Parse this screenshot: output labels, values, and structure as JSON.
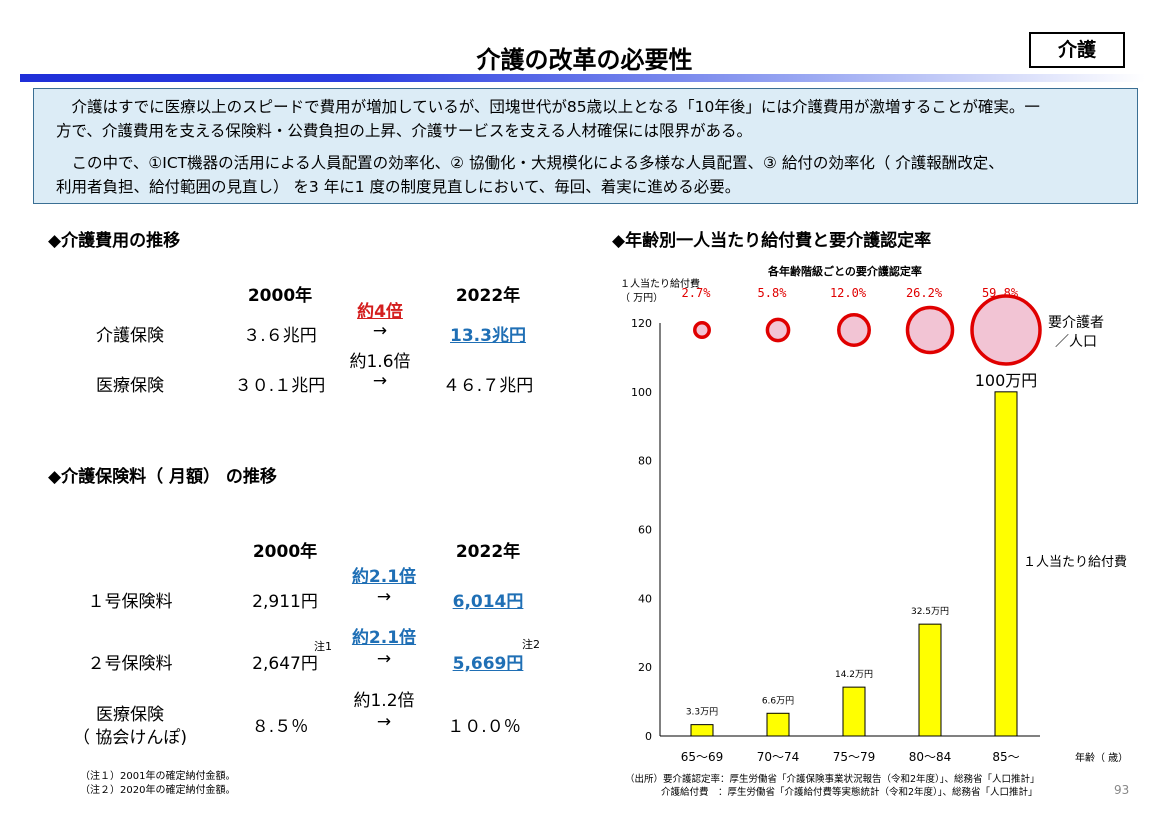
{
  "header": {
    "title": "介護の改革の必要性",
    "tag": "介護"
  },
  "summary": {
    "bullet_symbol": "",
    "p1_line1": "　介護はすでに医療以上のスピードで費用が増加しているが、団塊世代が85歳以上となる「10年後」には介護費用が激増することが確実。一",
    "p1_line2": "方で、介護費用を支える保険料・公費負担の上昇、介護サービスを支える人材確保には限界がある。",
    "p2_line1": "　この中で、①ICT機器の活用による人員配置の効率化、② 協働化・大規模化による多様な人員配置、③ 給付の効率化（ 介護報酬改定、",
    "p2_line2": "利用者負担、給付範囲の見直し） を3 年に1 度の制度見直しにおいて、毎回、着実に進める必要。"
  },
  "cost": {
    "heading": "◆介護費用の推移",
    "year_from": "2000年",
    "year_to": "2022年",
    "rows": [
      {
        "label": "介護保険",
        "from": "３.６兆円",
        "ratio": "約4倍",
        "arrow": "→",
        "to": "13.3兆円"
      },
      {
        "label": "医療保険",
        "from": "３０.１兆円",
        "ratio": "約1.6倍",
        "arrow": "→",
        "to": "４６.７兆円"
      }
    ]
  },
  "premium": {
    "heading": "◆介護保険料（ 月額） の推移",
    "year_from": "2000年",
    "year_to": "2022年",
    "rows": [
      {
        "label": "１号保険料",
        "from": "2,911円",
        "ratio": "約2.1倍",
        "arrow": "→",
        "to": "6,014円"
      },
      {
        "label": "２号保険料",
        "from": "2,647円",
        "from_note": "注1",
        "ratio": "約2.1倍",
        "arrow": "→",
        "to": "5,669円",
        "to_note": "注2"
      },
      {
        "label_line1": "医療保険",
        "label_line2": "（ 協会けんぽ)",
        "from": "８.５％",
        "ratio": "約1.2倍",
        "arrow": "→",
        "to": "１０.０％"
      }
    ],
    "notes": [
      "（注１）2001年の確定納付金額。",
      "（注２）2020年の確定納付金額。"
    ]
  },
  "chart_heading": "◆年齢別一人当たり給付費と要介護認定率",
  "chart_data": {
    "type": "bar",
    "subtitle": "各年齢階級ごとの要介護認定率",
    "ylabel_line1": "１人当たり給付費",
    "ylabel_line2": "（ 万円）",
    "xlabel": "年齢（ 歳）",
    "categories": [
      "65～69",
      "70～74",
      "75～79",
      "80～84",
      "85～"
    ],
    "values": [
      3.3,
      6.6,
      14.2,
      32.5,
      100
    ],
    "value_labels": [
      "3.3万円",
      "6.6万円",
      "14.2万円",
      "32.5万円",
      "100万円"
    ],
    "ylim": [
      0,
      120
    ],
    "yticks": [
      0,
      20,
      40,
      60,
      80,
      100,
      120
    ],
    "series_label": "１人当たり給付費",
    "rates": [
      2.7,
      5.8,
      12.0,
      26.2,
      59.8
    ],
    "rate_labels": [
      "2.7%",
      "5.8%",
      "12.0%",
      "26.2%",
      "59.8%"
    ],
    "rate_legend_line1": "要介護者",
    "rate_legend_line2": "／人口",
    "bar_color": "#ffff00",
    "circle_fill": "#f2c4d4",
    "circle_stroke": "#e00000"
  },
  "source": {
    "line1": "（出所）要介護認定率：厚生労働省「介護保険事業状況報告（令和2年度）」、総務省「人口推計」",
    "line2": "介護給付費　：厚生労働省「介護給付費等実態統計（令和2年度）」、総務省「人口推計」"
  },
  "page_number": "93"
}
